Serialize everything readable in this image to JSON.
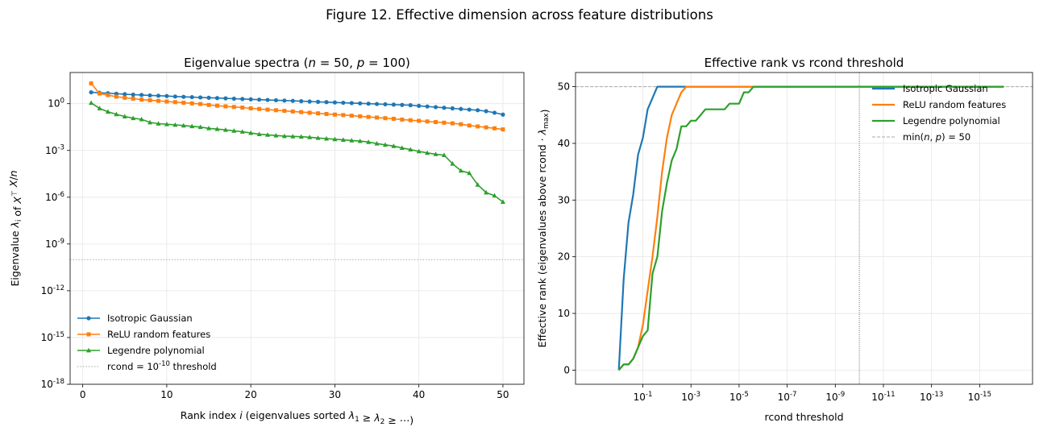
{
  "figure": {
    "suptitle": "Figure 12.  Effective dimension across feature distributions"
  },
  "colors": {
    "gaussian": "#1f77b4",
    "relu": "#ff7f0e",
    "legendre": "#2ca02c",
    "reference": "#aaaaaa",
    "threshold_vline": "#555555",
    "grid": "#e6e6e6"
  },
  "chart_data": [
    {
      "type": "line",
      "title": "Eigenvalue spectra (n = 50, p = 100)",
      "xlabel": "Rank index i  (eigenvalues sorted λ1 ≥ λ2 ≥ ⋯)",
      "ylabel": "Eigenvalue λi of XᵀX/n",
      "yscale": "log",
      "xlim": [
        -1.5,
        52.5
      ],
      "ylim_exp": [
        -18,
        2.0
      ],
      "x_ticks": [
        0,
        10,
        20,
        30,
        40,
        50
      ],
      "y_ticks": [
        {
          "exp": 0,
          "label": "10^0"
        },
        {
          "exp": -3,
          "label": "10^-3"
        },
        {
          "exp": -6,
          "label": "10^-6"
        },
        {
          "exp": -9,
          "label": "10^-9"
        },
        {
          "exp": -12,
          "label": "10^-12"
        },
        {
          "exp": -15,
          "label": "10^-15"
        },
        {
          "exp": -18,
          "label": "10^-18"
        }
      ],
      "grid": true,
      "legend_position": "lower-left",
      "hline": {
        "value": 1e-10,
        "label": "rcond = 10^-10 threshold"
      },
      "series": [
        {
          "name": "Isotropic Gaussian",
          "color_key": "gaussian",
          "marker": "circle",
          "x": [
            1,
            2,
            3,
            4,
            5,
            6,
            7,
            8,
            9,
            10,
            11,
            12,
            13,
            14,
            15,
            16,
            17,
            18,
            19,
            20,
            21,
            22,
            23,
            24,
            25,
            26,
            27,
            28,
            29,
            30,
            31,
            32,
            33,
            34,
            35,
            36,
            37,
            38,
            39,
            40,
            41,
            42,
            43,
            44,
            45,
            46,
            47,
            48,
            49,
            50
          ],
          "y_exp": [
            0.73,
            0.7,
            0.67,
            0.64,
            0.61,
            0.58,
            0.56,
            0.53,
            0.51,
            0.49,
            0.46,
            0.44,
            0.42,
            0.4,
            0.38,
            0.36,
            0.34,
            0.32,
            0.3,
            0.28,
            0.26,
            0.24,
            0.22,
            0.2,
            0.18,
            0.16,
            0.14,
            0.12,
            0.1,
            0.08,
            0.06,
            0.04,
            0.02,
            0.0,
            -0.02,
            -0.04,
            -0.06,
            -0.08,
            -0.1,
            -0.14,
            -0.18,
            -0.22,
            -0.26,
            -0.3,
            -0.34,
            -0.38,
            -0.42,
            -0.48,
            -0.58,
            -0.7
          ]
        },
        {
          "name": "ReLU random features",
          "color_key": "relu",
          "marker": "square",
          "x": [
            1,
            2,
            3,
            4,
            5,
            6,
            7,
            8,
            9,
            10,
            11,
            12,
            13,
            14,
            15,
            16,
            17,
            18,
            19,
            20,
            21,
            22,
            23,
            24,
            25,
            26,
            27,
            28,
            29,
            30,
            31,
            32,
            33,
            34,
            35,
            36,
            37,
            38,
            39,
            40,
            41,
            42,
            43,
            44,
            45,
            46,
            47,
            48,
            49,
            50
          ],
          "y_exp": [
            1.3,
            0.65,
            0.55,
            0.45,
            0.38,
            0.32,
            0.26,
            0.22,
            0.18,
            0.14,
            0.1,
            0.06,
            0.02,
            -0.02,
            -0.08,
            -0.13,
            -0.17,
            -0.21,
            -0.25,
            -0.3,
            -0.34,
            -0.38,
            -0.42,
            -0.46,
            -0.5,
            -0.54,
            -0.58,
            -0.62,
            -0.66,
            -0.7,
            -0.73,
            -0.77,
            -0.81,
            -0.85,
            -0.89,
            -0.93,
            -0.97,
            -1.02,
            -1.06,
            -1.1,
            -1.14,
            -1.18,
            -1.22,
            -1.26,
            -1.32,
            -1.4,
            -1.46,
            -1.52,
            -1.58,
            -1.65
          ]
        },
        {
          "name": "Legendre polynomial",
          "color_key": "legendre",
          "marker": "triangle",
          "x": [
            1,
            2,
            3,
            4,
            5,
            6,
            7,
            8,
            9,
            10,
            11,
            12,
            13,
            14,
            15,
            16,
            17,
            18,
            19,
            20,
            21,
            22,
            23,
            24,
            25,
            26,
            27,
            28,
            29,
            30,
            31,
            32,
            33,
            34,
            35,
            36,
            37,
            38,
            39,
            40,
            41,
            42,
            43,
            44,
            45,
            46,
            47,
            48,
            49,
            50
          ],
          "y_exp": [
            0.05,
            -0.3,
            -0.52,
            -0.68,
            -0.82,
            -0.93,
            -1.0,
            -1.2,
            -1.28,
            -1.32,
            -1.36,
            -1.4,
            -1.45,
            -1.5,
            -1.58,
            -1.63,
            -1.68,
            -1.74,
            -1.8,
            -1.88,
            -1.96,
            -2.0,
            -2.04,
            -2.08,
            -2.1,
            -2.12,
            -2.15,
            -2.2,
            -2.24,
            -2.28,
            -2.32,
            -2.36,
            -2.4,
            -2.46,
            -2.56,
            -2.64,
            -2.72,
            -2.84,
            -2.94,
            -3.06,
            -3.16,
            -3.24,
            -3.3,
            -3.85,
            -4.3,
            -4.45,
            -5.2,
            -5.7,
            -5.9,
            -6.3
          ]
        }
      ]
    },
    {
      "type": "line",
      "title": "Effective rank vs rcond threshold",
      "xlabel": "rcond threshold",
      "ylabel": "Effective rank  (eigenvalues above rcond · λmax)",
      "xscale": "log",
      "x_axis_inverted": true,
      "xlim_exp": [
        1.8,
        -17.2
      ],
      "ylim": [
        -2.5,
        52.5
      ],
      "x_ticks": [
        {
          "exp": -1,
          "label": "10^-1"
        },
        {
          "exp": -3,
          "label": "10^-3"
        },
        {
          "exp": -5,
          "label": "10^-5"
        },
        {
          "exp": -7,
          "label": "10^-7"
        },
        {
          "exp": -9,
          "label": "10^-9"
        },
        {
          "exp": -11,
          "label": "10^-11"
        },
        {
          "exp": -13,
          "label": "10^-13"
        },
        {
          "exp": -15,
          "label": "10^-15"
        }
      ],
      "y_ticks": [
        0,
        10,
        20,
        30,
        40,
        50
      ],
      "grid": true,
      "legend_position": "top-right",
      "hline": {
        "value": 50,
        "label": "min(n, p) = 50"
      },
      "vline": {
        "x_exp": -10
      },
      "series": [
        {
          "name": "Isotropic Gaussian",
          "color_key": "gaussian",
          "x_exp": [
            0,
            -0.2,
            -0.4,
            -0.6,
            -0.8,
            -1,
            -1.2,
            -1.4,
            -1.6,
            -2,
            -4,
            -6,
            -8,
            -10,
            -12,
            -14,
            -16
          ],
          "y": [
            0,
            16,
            26,
            31,
            38,
            41,
            46,
            48,
            50,
            50,
            50,
            50,
            50,
            50,
            50,
            50,
            50
          ]
        },
        {
          "name": "ReLU random features",
          "color_key": "relu",
          "x_exp": [
            0,
            -0.2,
            -0.4,
            -0.6,
            -0.8,
            -1,
            -1.2,
            -1.4,
            -1.6,
            -1.8,
            -2,
            -2.2,
            -2.4,
            -2.6,
            -2.8,
            -3,
            -3.2,
            -4,
            -6,
            -8,
            -10,
            -12,
            -14,
            -16
          ],
          "y": [
            0,
            1,
            1,
            2,
            4,
            8,
            14,
            20,
            27,
            35,
            41,
            45,
            47,
            49,
            50,
            50,
            50,
            50,
            50,
            50,
            50,
            50,
            50,
            50
          ]
        },
        {
          "name": "Legendre polynomial",
          "color_key": "legendre",
          "x_exp": [
            0,
            -0.2,
            -0.4,
            -0.6,
            -0.8,
            -1,
            -1.2,
            -1.4,
            -1.6,
            -1.8,
            -2,
            -2.2,
            -2.4,
            -2.6,
            -2.8,
            -3,
            -3.2,
            -3.4,
            -3.6,
            -3.8,
            -4,
            -4.2,
            -4.4,
            -4.6,
            -4.8,
            -5,
            -5.2,
            -5.4,
            -5.6,
            -6,
            -8,
            -10,
            -12,
            -14,
            -16
          ],
          "y": [
            0,
            1,
            1,
            2,
            4,
            6,
            7,
            17,
            20,
            28,
            33,
            37,
            39,
            43,
            43,
            44,
            44,
            45,
            46,
            46,
            46,
            46,
            46,
            47,
            47,
            47,
            49,
            49,
            50,
            50,
            50,
            50,
            50,
            50,
            50
          ]
        }
      ]
    }
  ]
}
